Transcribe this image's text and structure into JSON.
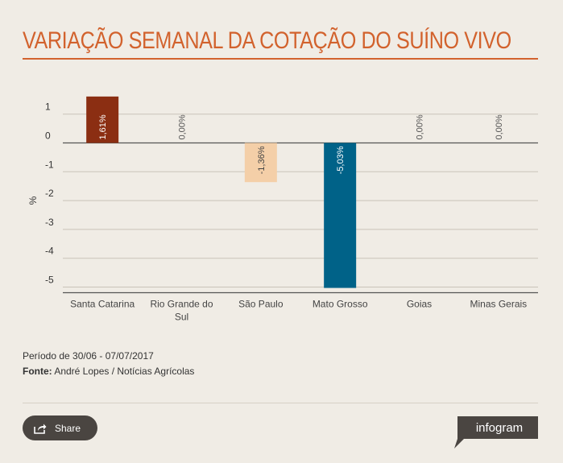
{
  "title": "VARIAÇÃO SEMANAL DA COTAÇÃO DO SUÍNO VIVO",
  "footer": {
    "period": "Período de 30/06 - 07/07/2017",
    "source_label": "Fonte:",
    "source_text": " André Lopes / Notícias Agrícolas"
  },
  "share_label": "Share",
  "brand": "infogram",
  "icons": {
    "share": "share-icon"
  },
  "chart_data": {
    "type": "bar",
    "title": "VARIAÇÃO SEMANAL DA COTAÇÃO DO SUÍNO VIVO",
    "xlabel": "",
    "ylabel": "%",
    "ylim": [
      -5,
      1
    ],
    "yticks": [
      1,
      0,
      -1,
      -2,
      -3,
      -4,
      -5
    ],
    "grid": true,
    "categories": [
      "Santa Catarina",
      "Rio Grande do Sul",
      "São Paulo",
      "Mato Grosso",
      "Goias",
      "Minas Gerais"
    ],
    "category_lines": [
      [
        "Santa Catarina"
      ],
      [
        "Rio Grande do",
        "Sul"
      ],
      [
        "São Paulo"
      ],
      [
        "Mato Grosso"
      ],
      [
        "Goias"
      ],
      [
        "Minas Gerais"
      ]
    ],
    "values": [
      1.61,
      0.0,
      -1.36,
      -5.03,
      0.0,
      0.0
    ],
    "data_labels": [
      "1,61%",
      "0,00%",
      "-1,36%",
      "-5,03%",
      "0,00%",
      "0,00%"
    ],
    "colors": [
      "#8b2e12",
      "#8b2e12",
      "#f4cfa8",
      "#006288",
      "#4a90c2",
      "#bbbbbb"
    ],
    "label_colors": [
      "#ffffff",
      "#555555",
      "#444444",
      "#ffffff",
      "#555555",
      "#555555"
    ]
  }
}
